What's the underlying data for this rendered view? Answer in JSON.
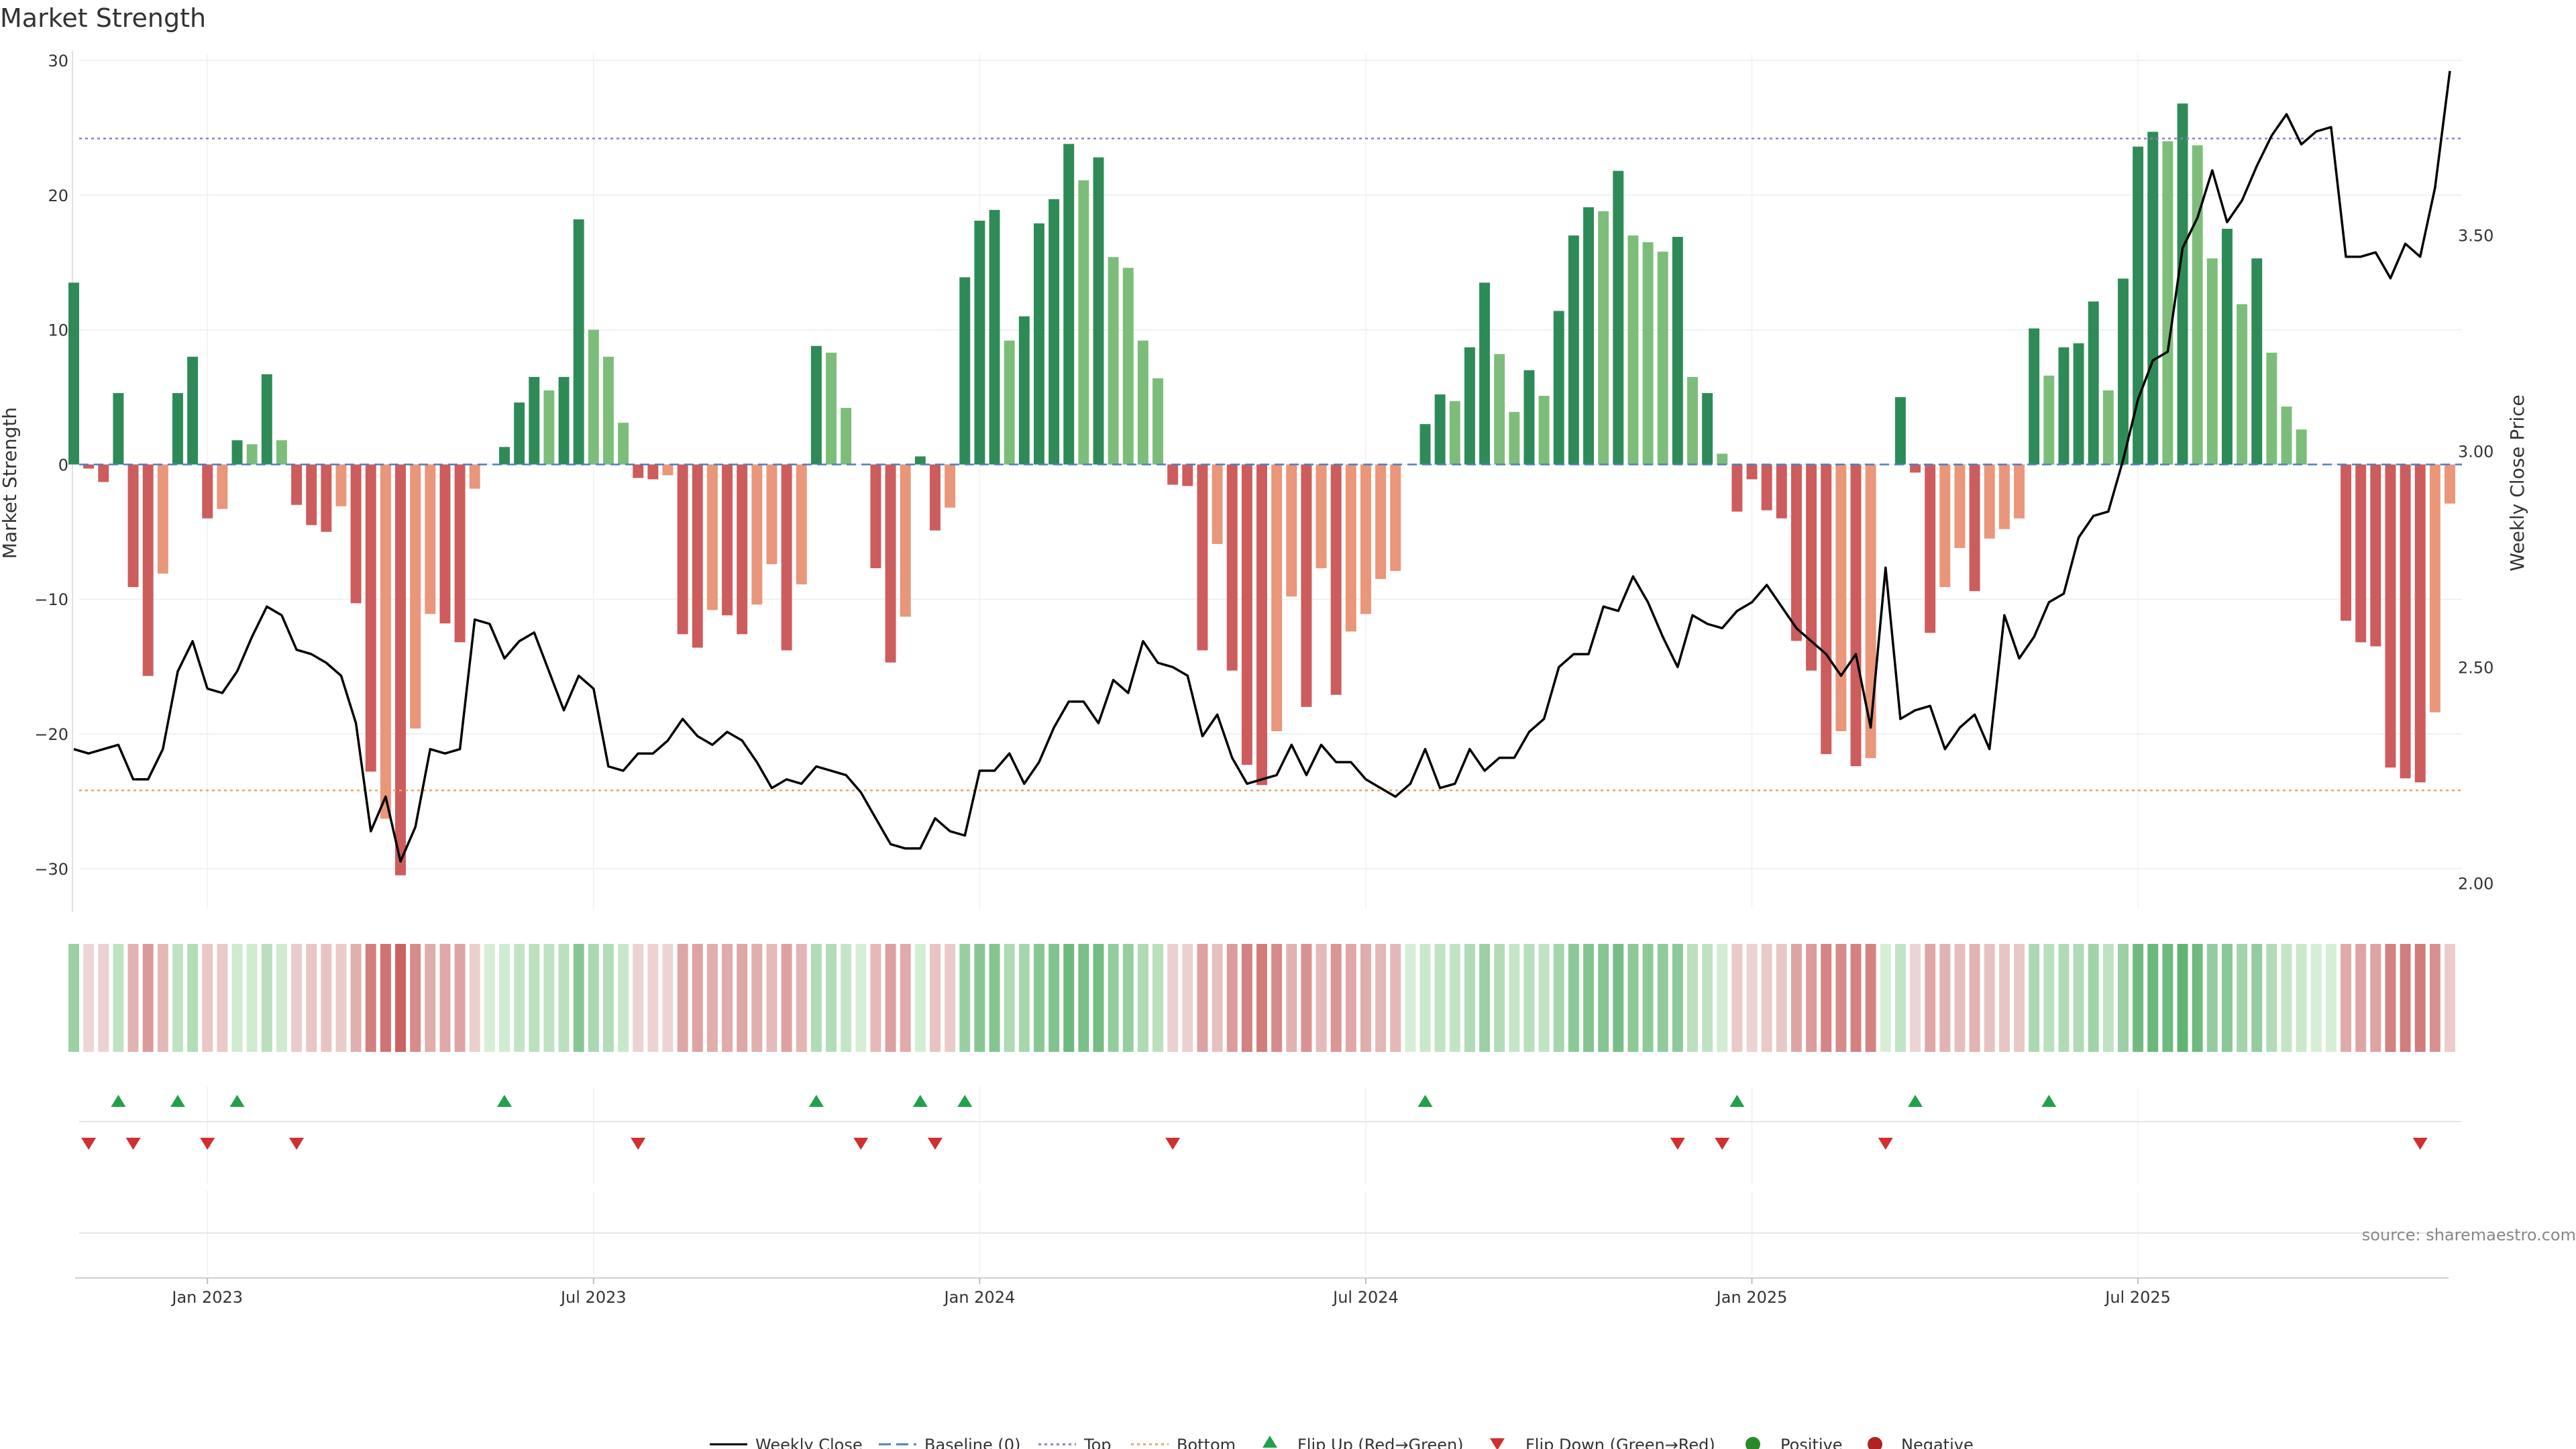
{
  "chart_data": {
    "type": "bar+line",
    "title": "Market Strength",
    "source": "source: sharemaestro.com",
    "left_axis": {
      "label": "Market Strength",
      "range": [
        -33,
        30.5
      ],
      "ticks": [
        "30",
        "20",
        "10",
        "0",
        "−10",
        "−20",
        "−30"
      ],
      "tick_values": [
        30,
        20,
        10,
        0,
        -10,
        -20,
        -30
      ]
    },
    "right_axis": {
      "label": "Weekly Close Price",
      "range": [
        1.94,
        3.92
      ],
      "ticks": [
        "3.50",
        "3.00",
        "2.50",
        "2.00"
      ],
      "tick_values": [
        3.5,
        3.0,
        2.5,
        2.0
      ]
    },
    "x_axis": {
      "ticks": [
        "Jan 2023",
        "Jul 2023",
        "Jan 2024",
        "Jul 2024",
        "Jan 2025",
        "Jul 2025"
      ],
      "tick_positions": [
        9,
        35,
        61,
        87,
        113,
        139
      ]
    },
    "top_line": 24.2,
    "bottom_line": -24.2,
    "baseline": 0,
    "strength": [
      13.5,
      -0.3,
      -1.3,
      5.3,
      -9.1,
      -15.7,
      -8.1,
      5.3,
      8.0,
      -4.0,
      -3.3,
      1.8,
      1.5,
      6.7,
      1.8,
      -3.0,
      -4.5,
      -5.0,
      -3.1,
      -10.3,
      -22.8,
      -26.3,
      -30.5,
      -19.6,
      -11.1,
      -11.8,
      -13.2,
      -1.8,
      0.0,
      1.3,
      4.6,
      6.5,
      5.5,
      6.5,
      18.2,
      10.0,
      8.0,
      3.1,
      -1.0,
      -1.1,
      -0.8,
      -12.6,
      -13.6,
      -10.8,
      -11.2,
      -12.6,
      -10.4,
      -7.4,
      -13.8,
      -8.9,
      8.8,
      8.3,
      4.2,
      0.0,
      -7.7,
      -14.7,
      -11.3,
      0.6,
      -4.9,
      -3.2,
      13.9,
      18.1,
      18.9,
      9.2,
      11.0,
      17.9,
      19.7,
      23.8,
      21.1,
      22.8,
      15.4,
      14.6,
      9.2,
      6.4,
      -1.5,
      -1.6,
      -13.8,
      -5.9,
      -15.3,
      -22.3,
      -23.8,
      -19.8,
      -9.8,
      -18.0,
      -7.7,
      -17.1,
      -12.4,
      -11.1,
      -8.5,
      -7.9,
      0.0,
      3.0,
      5.2,
      4.7,
      8.7,
      13.5,
      8.2,
      3.9,
      7.0,
      5.1,
      11.4,
      17.0,
      19.1,
      18.8,
      21.8,
      17.0,
      16.5,
      15.8,
      16.9,
      6.5,
      5.3,
      0.8,
      -3.5,
      -1.1,
      -3.4,
      -4.0,
      -13.1,
      -15.3,
      -21.5,
      -19.8,
      -22.4,
      -21.8,
      0.0,
      5.0,
      -0.6,
      -12.5,
      -9.1,
      -6.2,
      -9.4,
      -5.5,
      -4.8,
      -4.0,
      10.1,
      6.6,
      8.7,
      9.0,
      12.1,
      5.5,
      13.8,
      23.6,
      24.7,
      24.0,
      26.8,
      23.7,
      15.3,
      17.5,
      11.9,
      15.3,
      8.3,
      4.3,
      2.6,
      0.0,
      0.0,
      -11.6,
      -13.2,
      -13.5,
      -22.5,
      -23.3,
      -23.6,
      -18.4,
      -2.9
    ],
    "bar_kind": [
      "G1",
      "R1",
      "R1",
      "G1",
      "R1",
      "R1",
      "R2",
      "G1",
      "G1",
      "R1",
      "R2",
      "G1",
      "G2",
      "G1",
      "G2",
      "R1",
      "R1",
      "R1",
      "R2",
      "R1",
      "R1",
      "R2",
      "R1",
      "R2",
      "R2",
      "R1",
      "R1",
      "R2",
      "N",
      "G1",
      "G1",
      "G1",
      "G2",
      "G1",
      "G1",
      "G2",
      "G2",
      "G2",
      "R1",
      "R1",
      "R2",
      "R1",
      "R1",
      "R2",
      "R1",
      "R1",
      "R2",
      "R2",
      "R1",
      "R2",
      "G1",
      "G2",
      "G2",
      "N",
      "R1",
      "R1",
      "R2",
      "G1",
      "R1",
      "R2",
      "G1",
      "G1",
      "G1",
      "G2",
      "G1",
      "G1",
      "G1",
      "G1",
      "G2",
      "G1",
      "G2",
      "G2",
      "G2",
      "G2",
      "R1",
      "R1",
      "R1",
      "R2",
      "R1",
      "R1",
      "R1",
      "R2",
      "R2",
      "R1",
      "R2",
      "R1",
      "R2",
      "R2",
      "R2",
      "R2",
      "N",
      "G1",
      "G1",
      "G2",
      "G1",
      "G1",
      "G2",
      "G2",
      "G1",
      "G2",
      "G1",
      "G1",
      "G1",
      "G2",
      "G1",
      "G2",
      "G2",
      "G2",
      "G1",
      "G2",
      "G1",
      "G2",
      "R1",
      "R1",
      "R1",
      "R1",
      "R1",
      "R1",
      "R1",
      "R2",
      "R1",
      "R2",
      "N",
      "G1",
      "R1",
      "R1",
      "R2",
      "R2",
      "R1",
      "R2",
      "R2",
      "R2",
      "G1",
      "G2",
      "G1",
      "G1",
      "G1",
      "G2",
      "G1",
      "G1",
      "G1",
      "G2",
      "G1",
      "G2",
      "G2",
      "G1",
      "G2",
      "G1",
      "G2",
      "G2",
      "G2",
      "N",
      "N",
      "R1",
      "R1",
      "R1",
      "R1",
      "R1",
      "R1",
      "R2",
      "R2"
    ],
    "weekly_close": [
      2.31,
      2.3,
      2.31,
      2.32,
      2.24,
      2.24,
      2.31,
      2.49,
      2.56,
      2.45,
      2.44,
      2.49,
      2.57,
      2.64,
      2.62,
      2.54,
      2.53,
      2.51,
      2.48,
      2.37,
      2.12,
      2.2,
      2.05,
      2.13,
      2.31,
      2.3,
      2.31,
      2.61,
      2.6,
      2.52,
      2.56,
      2.58,
      2.49,
      2.4,
      2.48,
      2.45,
      2.27,
      2.26,
      2.3,
      2.3,
      2.33,
      2.38,
      2.34,
      2.32,
      2.35,
      2.33,
      2.28,
      2.22,
      2.24,
      2.23,
      2.27,
      2.26,
      2.25,
      2.21,
      2.15,
      2.09,
      2.08,
      2.08,
      2.15,
      2.12,
      2.11,
      2.26,
      2.26,
      2.3,
      2.23,
      2.28,
      2.36,
      2.42,
      2.42,
      2.37,
      2.47,
      2.44,
      2.56,
      2.51,
      2.5,
      2.48,
      2.34,
      2.39,
      2.29,
      2.23,
      2.24,
      2.25,
      2.32,
      2.25,
      2.32,
      2.28,
      2.28,
      2.24,
      2.22,
      2.2,
      2.23,
      2.31,
      2.22,
      2.23,
      2.31,
      2.26,
      2.29,
      2.29,
      2.35,
      2.38,
      2.5,
      2.53,
      2.53,
      2.64,
      2.63,
      2.71,
      2.65,
      2.57,
      2.5,
      2.62,
      2.6,
      2.59,
      2.63,
      2.65,
      2.69,
      2.64,
      2.59,
      2.56,
      2.53,
      2.48,
      2.53,
      2.36,
      2.73,
      2.38,
      2.4,
      2.41,
      2.31,
      2.36,
      2.39,
      2.31,
      2.62,
      2.52,
      2.57,
      2.65,
      2.67,
      2.8,
      2.85,
      2.86,
      2.98,
      3.12,
      3.21,
      3.23,
      3.47,
      3.54,
      3.65,
      3.53,
      3.58,
      3.66,
      3.73,
      3.78,
      3.71,
      3.74,
      3.75,
      3.45,
      3.45,
      3.46,
      3.4,
      3.48,
      3.45,
      3.61,
      3.88
    ]
  },
  "flip_up_markers": [
    3,
    7,
    11,
    29,
    50,
    57,
    60,
    91,
    112,
    124,
    133
  ],
  "flip_down_markers": [
    1,
    4,
    9,
    15,
    38,
    53,
    58,
    74,
    108,
    111,
    122,
    158
  ],
  "heat_strip": "Positive/negative strength strip (bar shade intensity mirrors strength magnitude)",
  "legend": {
    "weekly_close": "Weekly Close",
    "baseline": "Baseline (0)",
    "top": "Top",
    "bottom": "Bottom",
    "flip_up": "Flip Up (Red→Green)",
    "flip_down": "Flip Down (Green→Red)",
    "positive": "Positive",
    "negative": "Negative"
  },
  "colors": {
    "green_dark": "#2e8b57",
    "green_light": "#7dbd7a",
    "red_dark": "#cd5c5c",
    "red_light": "#e9967a",
    "line": "#000000",
    "top_line": "#8a7bd1",
    "bottom_line": "#f0a060",
    "baseline": "#4f7fbf",
    "flip_up": "#22a04b",
    "flip_down": "#d03030",
    "positive": "#2a8a2a",
    "negative": "#b22222"
  }
}
